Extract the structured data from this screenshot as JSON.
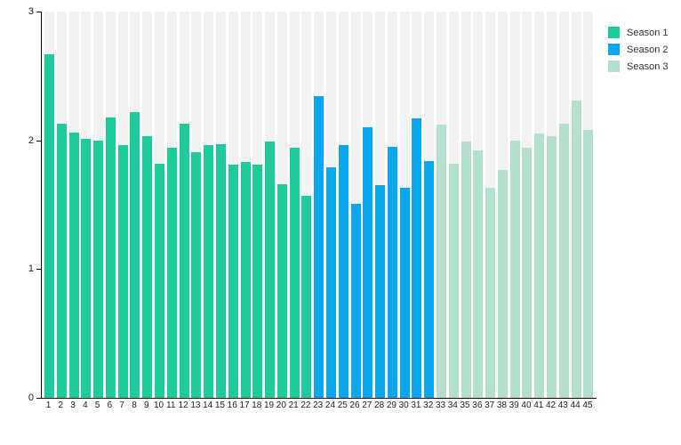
{
  "chart_data": {
    "type": "bar",
    "title": "",
    "xlabel": "",
    "ylabel": "",
    "ylim": [
      0,
      3
    ],
    "yticks": [
      "0",
      "1",
      "2",
      "3"
    ],
    "grid": false,
    "legend_position": "top-right",
    "track_color": "#f2f2f2",
    "axis_color": "#000000",
    "x_labels": [
      "1",
      "2",
      "3",
      "4",
      "5",
      "6",
      "7",
      "8",
      "9",
      "10",
      "11",
      "12",
      "13",
      "14",
      "15",
      "16",
      "17",
      "18",
      "19",
      "20",
      "21",
      "22",
      "23",
      "24",
      "25",
      "26",
      "27",
      "28",
      "29",
      "30",
      "31",
      "32",
      "33",
      "34",
      "35",
      "36",
      "37",
      "38",
      "39",
      "40",
      "41",
      "42",
      "43",
      "44",
      "45"
    ],
    "series": [
      {
        "name": "Season 1",
        "color": "#1dcb9d",
        "x_start": 1,
        "values": [
          2.67,
          2.13,
          2.06,
          2.01,
          2.0,
          2.18,
          1.96,
          2.22,
          2.03,
          1.82,
          1.94,
          2.13,
          1.91,
          1.96,
          1.97,
          1.81,
          1.83,
          1.81,
          1.99,
          1.66,
          1.94,
          1.57
        ]
      },
      {
        "name": "Season 2",
        "color": "#0aa6ee",
        "x_start": 23,
        "values": [
          2.34,
          1.79,
          1.96,
          1.51,
          2.1,
          1.65,
          1.95,
          1.63,
          2.17,
          1.84
        ]
      },
      {
        "name": "Season 3",
        "color": "#b3e0cd",
        "x_start": 33,
        "values": [
          2.12,
          1.82,
          1.99,
          1.92,
          1.63,
          1.77,
          2.0,
          1.94,
          2.05,
          2.03,
          2.13,
          2.31,
          2.08
        ]
      }
    ]
  },
  "legend": {
    "items": [
      {
        "label": "Season 1",
        "color": "#1dcb9d"
      },
      {
        "label": "Season 2",
        "color": "#0aa6ee"
      },
      {
        "label": "Season 3",
        "color": "#b3e0cd"
      }
    ]
  }
}
